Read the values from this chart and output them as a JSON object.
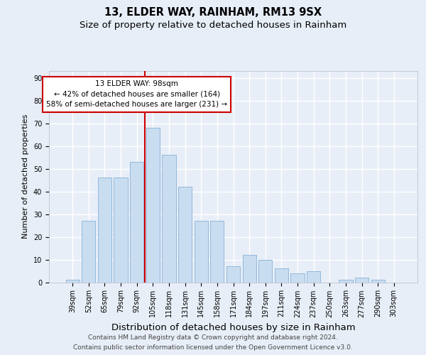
{
  "title1": "13, ELDER WAY, RAINHAM, RM13 9SX",
  "title2": "Size of property relative to detached houses in Rainham",
  "xlabel": "Distribution of detached houses by size in Rainham",
  "ylabel": "Number of detached properties",
  "categories": [
    "39sqm",
    "52sqm",
    "65sqm",
    "79sqm",
    "92sqm",
    "105sqm",
    "118sqm",
    "131sqm",
    "145sqm",
    "158sqm",
    "171sqm",
    "184sqm",
    "197sqm",
    "211sqm",
    "224sqm",
    "237sqm",
    "250sqm",
    "263sqm",
    "277sqm",
    "290sqm",
    "303sqm"
  ],
  "bar_vals": [
    1,
    27,
    46,
    46,
    53,
    68,
    56,
    42,
    27,
    27,
    7,
    12,
    10,
    6,
    4,
    5,
    0,
    1,
    2,
    1,
    0
  ],
  "bar_color": "#c9ddf0",
  "bar_edge_color": "#90b8dc",
  "vline_x": 4.5,
  "vline_color": "#cc0000",
  "ann_line1": "13 ELDER WAY: 98sqm",
  "ann_line2": "← 42% of detached houses are smaller (164)",
  "ann_line3": "58% of semi-detached houses are larger (231) →",
  "yticks": [
    0,
    10,
    20,
    30,
    40,
    50,
    60,
    70,
    80,
    90
  ],
  "ylim": [
    0,
    93
  ],
  "bg_color": "#e8eef7",
  "title1_fontsize": 10.5,
  "title2_fontsize": 9.5,
  "xlabel_fontsize": 9.5,
  "ylabel_fontsize": 8,
  "tick_fontsize": 7,
  "ann_fontsize": 7.5,
  "footer_fontsize": 6.5,
  "footer1": "Contains HM Land Registry data © Crown copyright and database right 2024.",
  "footer2": "Contains public sector information licensed under the Open Government Licence v3.0."
}
